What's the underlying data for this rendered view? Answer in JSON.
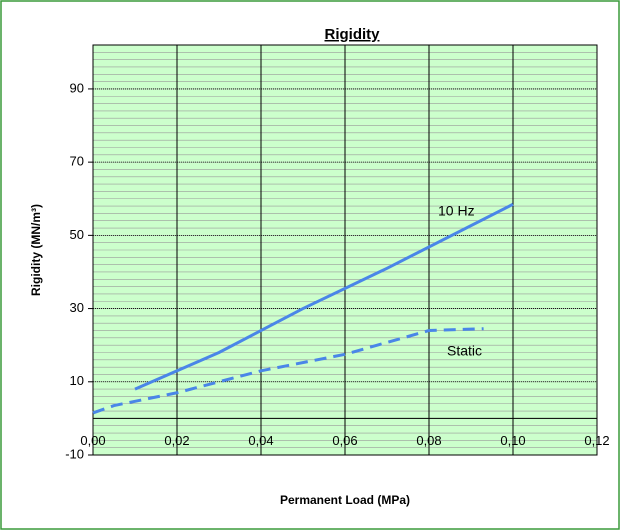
{
  "chart_data": {
    "type": "line",
    "title": "Rigidity",
    "x_label": "Permanent Load (MPa)",
    "y_label": "Rigidity (MN/m³)",
    "xlim": [
      0,
      0.12
    ],
    "xticks": [
      {
        "value": 0,
        "label": "0,00"
      },
      {
        "value": 0.02,
        "label": "0,02"
      },
      {
        "value": 0.04,
        "label": "0,04"
      },
      {
        "value": 0.06,
        "label": "0,06"
      },
      {
        "value": 0.08,
        "label": "0,08"
      },
      {
        "value": 0.1,
        "label": "0,10"
      },
      {
        "value": 0.12,
        "label": "0,12"
      }
    ],
    "ylim": [
      -10,
      102
    ],
    "yticks": [
      -10,
      10,
      30,
      50,
      70,
      90
    ],
    "minor_grid_step": 2,
    "grid": true,
    "background": "#ccffcc",
    "series": [
      {
        "name": "10 Hz",
        "color": "#4a86e8",
        "dash": false,
        "x": [
          0.01,
          0.03,
          0.05,
          0.07,
          0.1
        ],
        "values": [
          8,
          18,
          30,
          41,
          58.5
        ]
      },
      {
        "name": "Static",
        "color": "#4a86e8",
        "dash": true,
        "x": [
          0,
          0.005,
          0.02,
          0.04,
          0.06,
          0.08,
          0.093
        ],
        "values": [
          1.5,
          3.5,
          7,
          13,
          17.5,
          24,
          24.5
        ]
      }
    ]
  }
}
